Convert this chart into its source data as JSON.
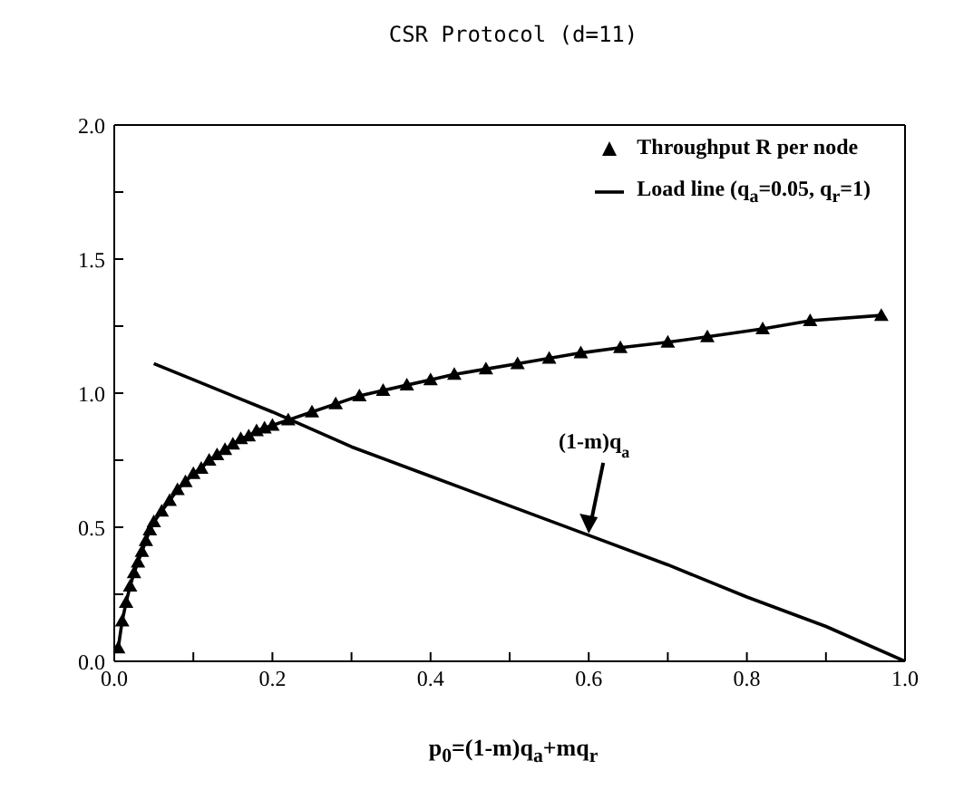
{
  "chart_data": {
    "type": "line",
    "title": "CSR Protocol (d=11)",
    "xlabel": "p$_{0}$=(1-m)q$_{a}$+mq$_{r}$",
    "xlim": [
      0,
      1
    ],
    "xticks": [
      {
        "value": 0,
        "label": "0.0"
      },
      {
        "value": 0.1,
        "label": null
      },
      {
        "value": 0.2,
        "label": "0.2"
      },
      {
        "value": 0.3,
        "label": null
      },
      {
        "value": 0.4,
        "label": "0.4"
      },
      {
        "value": 0.5,
        "label": null
      },
      {
        "value": 0.6,
        "label": "0.6"
      },
      {
        "value": 0.7,
        "label": null
      },
      {
        "value": 0.8,
        "label": "0.8"
      },
      {
        "value": 0.9,
        "label": null
      },
      {
        "value": 1,
        "label": "1.0"
      }
    ],
    "ylim": [
      0,
      2
    ],
    "yticks": [
      {
        "value": 0,
        "label": "0.0"
      },
      {
        "value": 0.25,
        "label": null
      },
      {
        "value": 0.5,
        "label": "0.5"
      },
      {
        "value": 0.75,
        "label": null
      },
      {
        "value": 1,
        "label": "1.0"
      },
      {
        "value": 1.25,
        "label": null
      },
      {
        "value": 1.5,
        "label": "1.5"
      },
      {
        "value": 1.75,
        "label": null
      },
      {
        "value": 2,
        "label": "2.0"
      }
    ],
    "legend": "top right",
    "series": [
      {
        "name": "Throughput R per node",
        "color": "#000000",
        "marker": "triangle",
        "x": [
          0.005,
          0.01,
          0.015,
          0.02,
          0.025,
          0.03,
          0.035,
          0.04,
          0.045,
          0.05,
          0.06,
          0.07,
          0.08,
          0.09,
          0.1,
          0.11,
          0.12,
          0.13,
          0.14,
          0.15,
          0.16,
          0.17,
          0.18,
          0.19,
          0.2,
          0.22,
          0.25,
          0.28,
          0.31,
          0.34,
          0.37,
          0.4,
          0.43,
          0.47,
          0.51,
          0.55,
          0.59,
          0.64,
          0.7,
          0.75,
          0.82,
          0.88,
          0.97
        ],
        "values": [
          0.05,
          0.15,
          0.22,
          0.28,
          0.33,
          0.37,
          0.41,
          0.45,
          0.49,
          0.52,
          0.56,
          0.6,
          0.64,
          0.67,
          0.7,
          0.72,
          0.75,
          0.77,
          0.79,
          0.81,
          0.83,
          0.84,
          0.86,
          0.87,
          0.88,
          0.9,
          0.93,
          0.96,
          0.99,
          1.01,
          1.03,
          1.05,
          1.07,
          1.09,
          1.11,
          1.13,
          1.15,
          1.17,
          1.19,
          1.21,
          1.24,
          1.27,
          1.29
        ]
      },
      {
        "name": "Load line (q$_{a}$=0.05, q$_{r}$=1)",
        "color": "#000000",
        "marker": "none",
        "x": [
          0.05,
          0.1,
          0.2,
          0.3,
          0.4,
          0.5,
          0.6,
          0.7,
          0.8,
          0.9,
          1.0
        ],
        "values": [
          1.11,
          1.05,
          0.93,
          0.8,
          0.69,
          0.58,
          0.47,
          0.36,
          0.24,
          0.13,
          0.0
        ]
      }
    ],
    "annotations": [
      {
        "text": "(1-m)q$_{a}$",
        "x": 0.6,
        "y": 0.47
      }
    ]
  }
}
